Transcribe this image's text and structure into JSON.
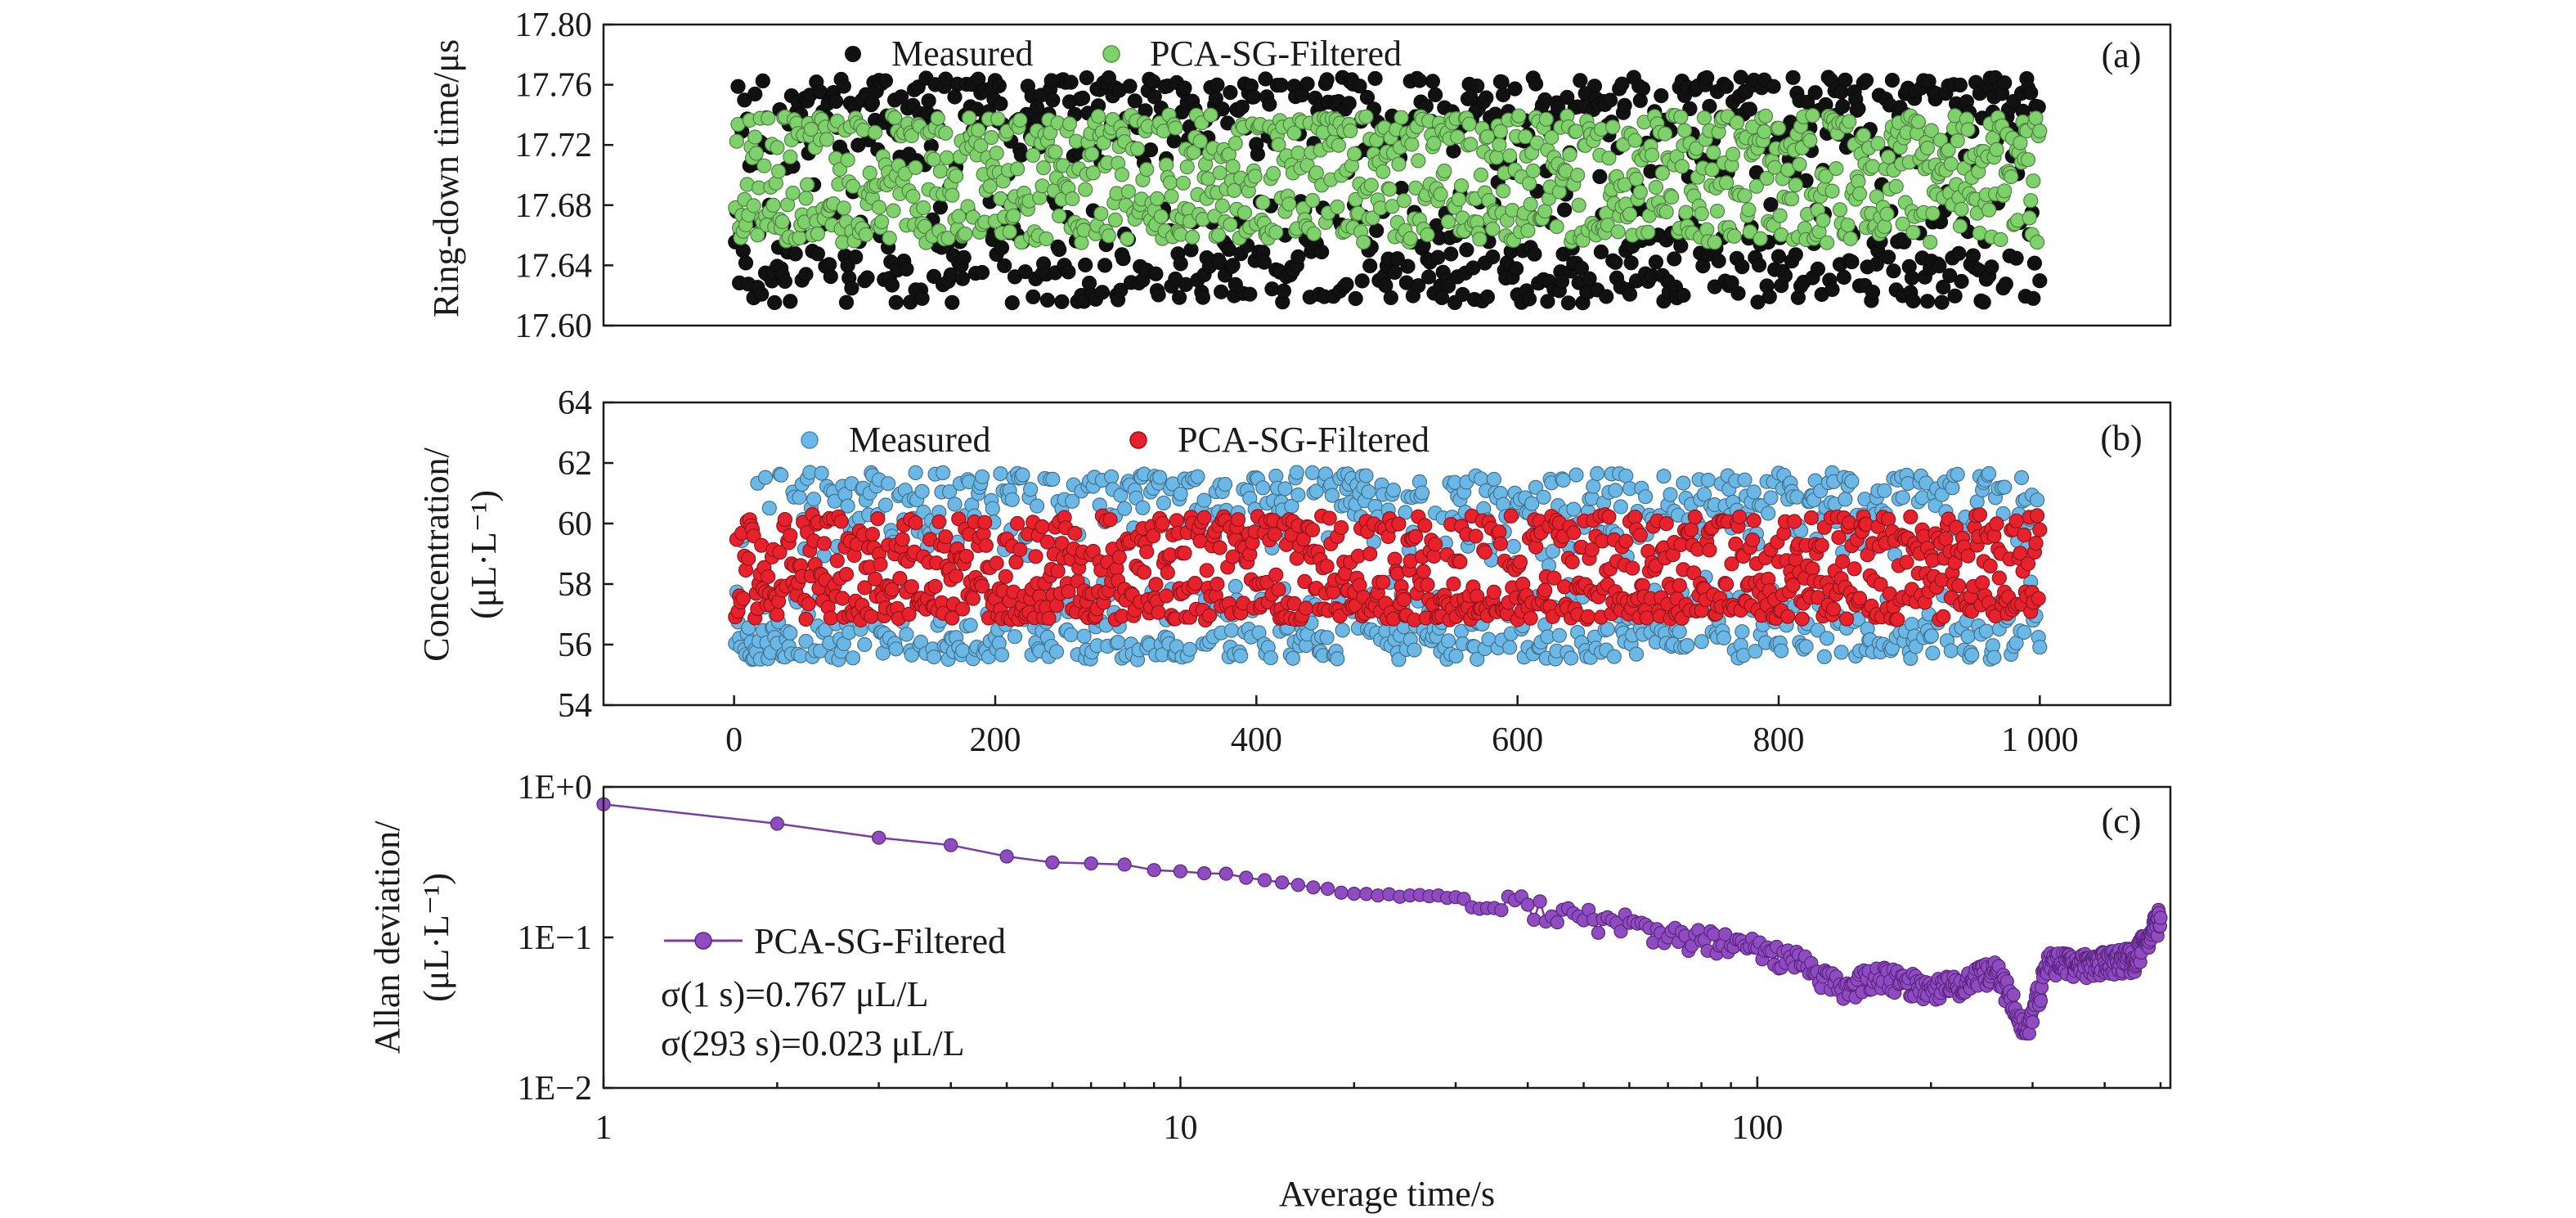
{
  "chart_data": [
    {
      "panel": "(a)",
      "type": "scatter",
      "ylabel": "Ring-down time/μs",
      "xlim": [
        -100,
        1100
      ],
      "ylim": [
        17.6,
        17.8
      ],
      "yticks": [
        "17.60",
        "17.64",
        "17.68",
        "17.72",
        "17.76",
        "17.80"
      ],
      "ytick_values": [
        17.6,
        17.64,
        17.68,
        17.72,
        17.76,
        17.8
      ],
      "legend_position": "top-left",
      "series": [
        {
          "name": "Measured",
          "color": "#111111",
          "n_points": 1000,
          "x_range": [
            1,
            1000
          ],
          "y_center": 17.695,
          "y_range": [
            17.615,
            17.765
          ]
        },
        {
          "name": "PCA-SG-Filtered",
          "color": "#7fd16b",
          "n_points": 1000,
          "x_range": [
            1,
            1000
          ],
          "y_center": 17.697,
          "y_range": [
            17.655,
            17.74
          ]
        }
      ]
    },
    {
      "panel": "(b)",
      "type": "scatter",
      "ylabel_line1": "Concentration/",
      "ylabel_line2": "(μL·L⁻¹)",
      "xlim": [
        -100,
        1100
      ],
      "ylim": [
        54,
        64
      ],
      "yticks": [
        "54",
        "56",
        "58",
        "60",
        "62",
        "64"
      ],
      "ytick_values": [
        54,
        56,
        58,
        60,
        62,
        64
      ],
      "xticks": [
        "0",
        "200",
        "400",
        "600",
        "800",
        "1 000"
      ],
      "xtick_values": [
        0,
        200,
        400,
        600,
        800,
        1000
      ],
      "legend_position": "top",
      "series": [
        {
          "name": "Measured",
          "color": "#6bb8e6",
          "n_points": 1000,
          "x_range": [
            1,
            1000
          ],
          "y_center": 58.4,
          "y_range": [
            55.5,
            61.7
          ]
        },
        {
          "name": "PCA-SG-Filtered",
          "color": "#e8222c",
          "n_points": 1000,
          "x_range": [
            1,
            1000
          ],
          "y_center": 58.2,
          "y_range": [
            56.8,
            60.3
          ]
        }
      ]
    },
    {
      "panel": "(c)",
      "type": "line",
      "xscale": "log",
      "yscale": "log",
      "xlabel": "Average time/s",
      "ylabel_line1": "Allan deviation/",
      "ylabel_line2": "(μL·L⁻¹)",
      "xlim": [
        1,
        520
      ],
      "ylim": [
        0.01,
        1
      ],
      "xticks": [
        "1",
        "10",
        "100"
      ],
      "xtick_values": [
        1,
        10,
        100
      ],
      "yticks": [
        "1E−2",
        "1E−1",
        "1E+0"
      ],
      "ytick_values": [
        0.01,
        0.1,
        1
      ],
      "legend_position": "bottom-left",
      "series": [
        {
          "name": "PCA-SG-Filtered",
          "color": "#7a3aa8",
          "anchor_points": [
            [
              1,
              0.767
            ],
            [
              2,
              0.57
            ],
            [
              3,
              0.46
            ],
            [
              4,
              0.41
            ],
            [
              5,
              0.345
            ],
            [
              6,
              0.315
            ],
            [
              7,
              0.31
            ],
            [
              8,
              0.305
            ],
            [
              9,
              0.28
            ],
            [
              10,
              0.275
            ],
            [
              12,
              0.265
            ],
            [
              14,
              0.24
            ],
            [
              17,
              0.215
            ],
            [
              20,
              0.195
            ],
            [
              25,
              0.19
            ],
            [
              30,
              0.185
            ],
            [
              33,
              0.155
            ],
            [
              40,
              0.165
            ],
            [
              50,
              0.13
            ],
            [
              60,
              0.125
            ],
            [
              70,
              0.1
            ],
            [
              80,
              0.095
            ],
            [
              90,
              0.088
            ],
            [
              100,
              0.085
            ],
            [
              120,
              0.065
            ],
            [
              140,
              0.045
            ],
            [
              160,
              0.055
            ],
            [
              180,
              0.05
            ],
            [
              200,
              0.046
            ],
            [
              230,
              0.05
            ],
            [
              260,
              0.06
            ],
            [
              293,
              0.023
            ],
            [
              320,
              0.07
            ],
            [
              360,
              0.065
            ],
            [
              400,
              0.068
            ],
            [
              450,
              0.072
            ],
            [
              500,
              0.135
            ]
          ]
        }
      ],
      "annotations": [
        "σ(1 s)=0.767 μL/L",
        "σ(293 s)=0.023 μL/L"
      ]
    }
  ]
}
